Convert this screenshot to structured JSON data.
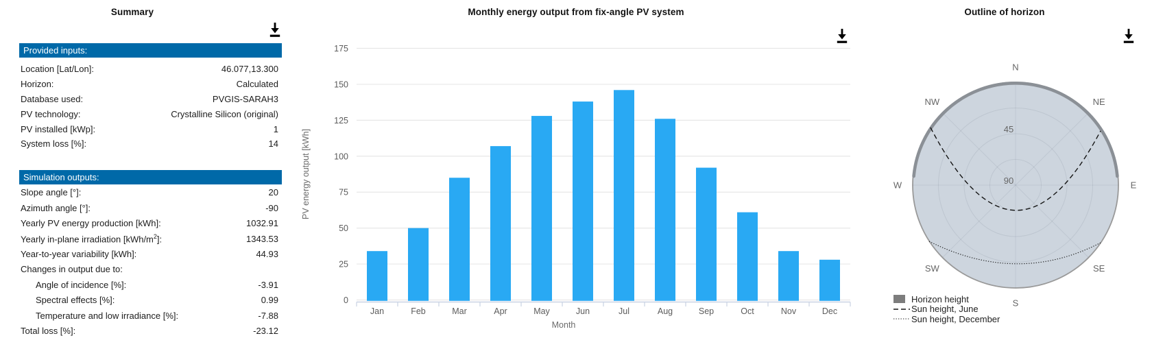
{
  "summary": {
    "title": "Summary",
    "header_bg": "#0069a8",
    "sections": [
      {
        "header": "Provided inputs:",
        "rows": [
          {
            "label": "Location [Lat/Lon]:",
            "value": "46.077,13.300"
          },
          {
            "label": "Horizon:",
            "value": "Calculated"
          },
          {
            "label": "Database used:",
            "value": "PVGIS-SARAH3"
          },
          {
            "label": "PV technology:",
            "value": "Crystalline Silicon (original)"
          },
          {
            "label": "PV installed [kWp]:",
            "value": "1"
          },
          {
            "label": "System loss [%]:",
            "value": "14"
          }
        ]
      },
      {
        "header": "Simulation outputs:",
        "rows": [
          {
            "label": "Slope angle [°]:",
            "value": "20"
          },
          {
            "label": "Azimuth angle [°]:",
            "value": "-90"
          },
          {
            "label": "Yearly PV energy production [kWh]:",
            "value": "1032.91"
          },
          {
            "label": "Yearly in-plane irradiation [kWh/m",
            "sup": "2",
            "label_end": "]:",
            "value": "1343.53"
          },
          {
            "label": "Year-to-year variability [kWh]:",
            "value": "44.93"
          },
          {
            "label": "Changes in output due to:",
            "value": ""
          },
          {
            "label": "Angle of incidence [%]:",
            "value": "-3.91",
            "indent": true
          },
          {
            "label": "Spectral effects [%]:",
            "value": "0.99",
            "indent": true
          },
          {
            "label": "Temperature and low irradiance [%]:",
            "value": "-7.88",
            "indent": true
          },
          {
            "label": "Total loss [%]:",
            "value": "-23.12"
          }
        ]
      }
    ]
  },
  "chart_data": [
    {
      "type": "bar",
      "title": "Monthly energy output from fix-angle PV system",
      "categories": [
        "Jan",
        "Feb",
        "Mar",
        "Apr",
        "May",
        "Jun",
        "Jul",
        "Aug",
        "Sep",
        "Oct",
        "Nov",
        "Dec"
      ],
      "values": [
        34,
        50,
        85,
        107,
        128,
        138,
        146,
        126,
        92,
        61,
        34,
        28
      ],
      "xlabel": "Month",
      "ylabel": "PV energy output [kWh]",
      "ylim": [
        0,
        175
      ],
      "ytick_step": 25,
      "ytick_labels": [
        0,
        25,
        50,
        75,
        100,
        125,
        150,
        175
      ],
      "bar_color": "#29A9F3",
      "grid": true,
      "legend_position": "none"
    },
    {
      "type": "polar",
      "title": "Outline of horizon",
      "compass_labels": [
        "N",
        "NE",
        "E",
        "SE",
        "S",
        "SW",
        "W",
        "NW"
      ],
      "radial_tick_labels": [
        "45",
        "90"
      ],
      "radial_axis": {
        "edge_value_deg": 0,
        "center_value_deg": 90
      },
      "legend": [
        {
          "label": "Horizon height",
          "style": "region",
          "color": "#7d7d7d"
        },
        {
          "label": "Sun height, June",
          "style": "dashed"
        },
        {
          "label": "Sun height, December",
          "style": "dotted"
        }
      ],
      "series_readings": {
        "june_noon_sun_height_deg": 68,
        "december_noon_sun_height_deg": 21
      },
      "disc_fill": "#cdd5de"
    }
  ],
  "icons": {
    "download": "download"
  }
}
